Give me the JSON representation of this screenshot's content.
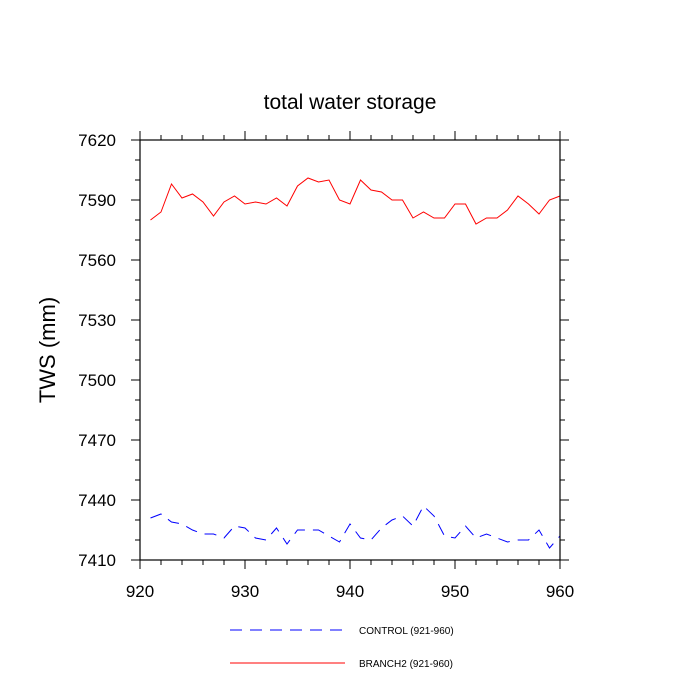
{
  "chart_data": {
    "type": "line",
    "title": "total water storage",
    "xlabel": "",
    "ylabel": "TWS  (mm)",
    "xlim": [
      920,
      960
    ],
    "ylim": [
      7410,
      7620
    ],
    "xticks": [
      920,
      930,
      940,
      950,
      960
    ],
    "yticks": [
      7410,
      7440,
      7470,
      7500,
      7530,
      7560,
      7590,
      7620
    ],
    "grid": false,
    "legend_position": "bottom",
    "x": [
      921,
      922,
      923,
      924,
      925,
      926,
      927,
      928,
      929,
      930,
      931,
      932,
      933,
      934,
      935,
      936,
      937,
      938,
      939,
      940,
      941,
      942,
      943,
      944,
      945,
      946,
      947,
      948,
      949,
      950,
      951,
      952,
      953,
      954,
      955,
      956,
      957,
      958,
      959,
      960
    ],
    "series": [
      {
        "name": "CONTROL (921-960)",
        "color": "#0000ff",
        "dash": "dashed",
        "values": [
          7431,
          7433,
          7429,
          7428,
          7425,
          7423,
          7423,
          7421,
          7427,
          7426,
          7421,
          7420,
          7426,
          7418,
          7425,
          7425,
          7425,
          7422,
          7419,
          7428,
          7421,
          7420,
          7426,
          7430,
          7432,
          7427,
          7437,
          7432,
          7422,
          7421,
          7427,
          7421,
          7423,
          7421,
          7419,
          7420,
          7420,
          7425,
          7416,
          7422
        ]
      },
      {
        "name": "BRANCH2 (921-960)",
        "color": "#ff0000",
        "dash": "solid",
        "values": [
          7580,
          7584,
          7598,
          7591,
          7593,
          7589,
          7582,
          7589,
          7592,
          7588,
          7589,
          7588,
          7591,
          7587,
          7597,
          7601,
          7599,
          7600,
          7590,
          7588,
          7600,
          7595,
          7594,
          7590,
          7590,
          7581,
          7584,
          7581,
          7581,
          7588,
          7588,
          7578,
          7581,
          7581,
          7585,
          7592,
          7588,
          7583,
          7590,
          7592
        ]
      }
    ]
  }
}
